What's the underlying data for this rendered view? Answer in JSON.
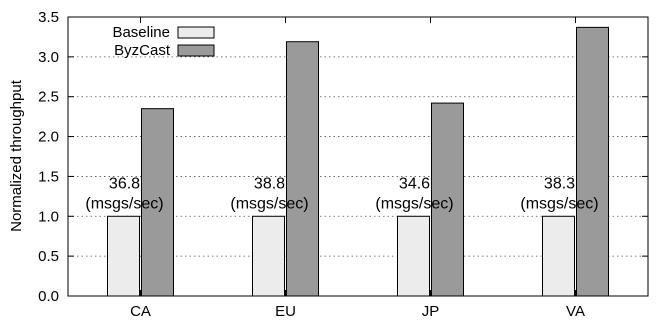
{
  "chart_data": {
    "type": "bar",
    "title": "",
    "xlabel": "",
    "ylabel": "Normalized throughput",
    "ylim": [
      0,
      3.5
    ],
    "yticks": [
      "0.0",
      "0.5",
      "1.0",
      "1.5",
      "2.0",
      "2.5",
      "3.0",
      "3.5"
    ],
    "grid": "horizontal dotted",
    "legend_position": "top-left",
    "categories": [
      "CA",
      "EU",
      "JP",
      "VA"
    ],
    "series": [
      {
        "name": "Baseline",
        "values": [
          1.0,
          1.0,
          1.0,
          1.0
        ],
        "color": "#ececec"
      },
      {
        "name": "ByzCast",
        "values": [
          2.35,
          3.19,
          2.42,
          3.37
        ],
        "color": "#9a9a9a"
      }
    ],
    "annotations": [
      {
        "category": "CA",
        "value": "36.8",
        "unit": "(msgs/sec)"
      },
      {
        "category": "EU",
        "value": "38.8",
        "unit": "(msgs/sec)"
      },
      {
        "category": "JP",
        "value": "34.6",
        "unit": "(msgs/sec)"
      },
      {
        "category": "VA",
        "value": "38.3",
        "unit": "(msgs/sec)"
      }
    ]
  }
}
